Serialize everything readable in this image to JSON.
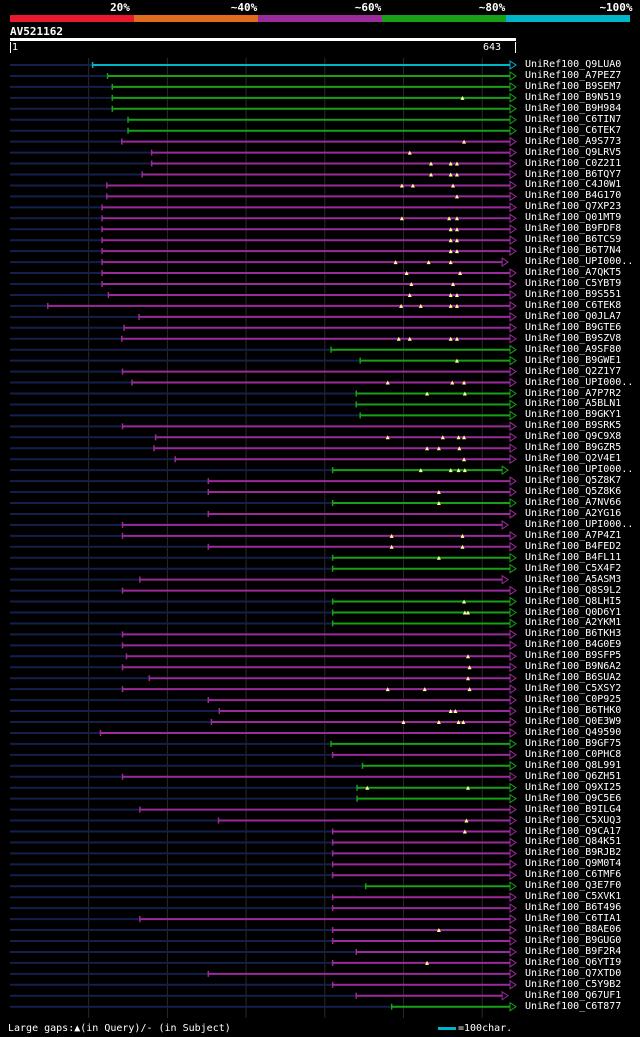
{
  "chart_data": {
    "type": "alignment-overview",
    "query": {
      "id": "AV521162",
      "start": 1,
      "length": 643
    },
    "identity_legend": [
      {
        "label": "20%",
        "color": "#e8192c"
      },
      {
        "label": "~40%",
        "color": "#e06b1c"
      },
      {
        "label": "~60%",
        "color": "#9b2a9b"
      },
      {
        "label": "~80%",
        "color": "#18a018"
      },
      {
        "label": "~100%",
        "color": "#00b5c8"
      }
    ],
    "footer": {
      "gaps_text": "Large gaps:▲(in Query)/- (in Subject)",
      "scale_text": "=100char."
    },
    "hits": [
      {
        "label": "UniRef100_Q9LUA0",
        "start": 105,
        "end": 643,
        "identity": 100,
        "gaps": []
      },
      {
        "label": "UniRef100_A7PEZ7",
        "start": 124,
        "end": 643,
        "identity": 80,
        "gaps": []
      },
      {
        "label": "UniRef100_B9SEM7",
        "start": 130,
        "end": 643,
        "identity": 80,
        "gaps": []
      },
      {
        "label": "UniRef100_B9N519",
        "start": 130,
        "end": 643,
        "identity": 80,
        "gaps": [
          575
        ]
      },
      {
        "label": "UniRef100_B9H984",
        "start": 130,
        "end": 643,
        "identity": 80,
        "gaps": []
      },
      {
        "label": "UniRef100_C6TIN7",
        "start": 150,
        "end": 643,
        "identity": 80,
        "gaps": []
      },
      {
        "label": "UniRef100_C6TEK7",
        "start": 150,
        "end": 643,
        "identity": 80,
        "gaps": []
      },
      {
        "label": "UniRef100_A9S773",
        "start": 142,
        "end": 643,
        "identity": 60,
        "gaps": [
          577
        ]
      },
      {
        "label": "UniRef100_Q9LRV5",
        "start": 180,
        "end": 643,
        "identity": 60,
        "gaps": [
          508
        ]
      },
      {
        "label": "UniRef100_C0Z2I1",
        "start": 180,
        "end": 643,
        "identity": 60,
        "gaps": [
          535,
          560,
          568
        ]
      },
      {
        "label": "UniRef100_B6TQY7",
        "start": 168,
        "end": 643,
        "identity": 60,
        "gaps": [
          535,
          560,
          568
        ]
      },
      {
        "label": "UniRef100_C4J0W1",
        "start": 123,
        "end": 643,
        "identity": 60,
        "gaps": [
          498,
          512,
          563
        ]
      },
      {
        "label": "UniRef100_B4G170",
        "start": 123,
        "end": 643,
        "identity": 60,
        "gaps": [
          568
        ]
      },
      {
        "label": "UniRef100_Q7XP23",
        "start": 117,
        "end": 643,
        "identity": 60,
        "gaps": []
      },
      {
        "label": "UniRef100_Q01MT9",
        "start": 117,
        "end": 643,
        "identity": 60,
        "gaps": [
          498,
          558,
          568
        ]
      },
      {
        "label": "UniRef100_B9FDF8",
        "start": 117,
        "end": 643,
        "identity": 60,
        "gaps": [
          560,
          568
        ]
      },
      {
        "label": "UniRef100_B6TCS9",
        "start": 117,
        "end": 643,
        "identity": 60,
        "gaps": [
          560,
          568
        ]
      },
      {
        "label": "UniRef100_B6T7N4",
        "start": 117,
        "end": 643,
        "identity": 60,
        "gaps": [
          560,
          568
        ]
      },
      {
        "label": "UniRef100_UPI000..",
        "start": 117,
        "end": 633,
        "identity": 60,
        "gaps": [
          490,
          532,
          560
        ]
      },
      {
        "label": "UniRef100_A7QKT5",
        "start": 117,
        "end": 643,
        "identity": 60,
        "gaps": [
          504,
          572
        ]
      },
      {
        "label": "UniRef100_C5YBT9",
        "start": 117,
        "end": 643,
        "identity": 60,
        "gaps": [
          510,
          563
        ]
      },
      {
        "label": "UniRef100_B9S551",
        "start": 125,
        "end": 643,
        "identity": 60,
        "gaps": [
          508,
          560,
          568
        ]
      },
      {
        "label": "UniRef100_C6TEK8",
        "start": 48,
        "end": 643,
        "identity": 60,
        "gaps": [
          497,
          522,
          560,
          568
        ]
      },
      {
        "label": "UniRef100_Q0JLA7",
        "start": 164,
        "end": 643,
        "identity": 60,
        "gaps": []
      },
      {
        "label": "UniRef100_B9GTE6",
        "start": 145,
        "end": 643,
        "identity": 60,
        "gaps": []
      },
      {
        "label": "UniRef100_B9SZV8",
        "start": 142,
        "end": 643,
        "identity": 60,
        "gaps": [
          494,
          508,
          560,
          568
        ]
      },
      {
        "label": "UniRef100_A9SF80",
        "start": 408,
        "end": 643,
        "identity": 80,
        "gaps": []
      },
      {
        "label": "UniRef100_B9GWE1",
        "start": 445,
        "end": 643,
        "identity": 80,
        "gaps": [
          568
        ]
      },
      {
        "label": "UniRef100_Q2Z1Y7",
        "start": 143,
        "end": 643,
        "identity": 60,
        "gaps": []
      },
      {
        "label": "UniRef100_UPI000..",
        "start": 155,
        "end": 643,
        "identity": 60,
        "gaps": [
          480,
          562,
          577
        ]
      },
      {
        "label": "UniRef100_A7P7R2",
        "start": 440,
        "end": 643,
        "identity": 80,
        "gaps": [
          530,
          578
        ]
      },
      {
        "label": "UniRef100_A5BLN1",
        "start": 440,
        "end": 643,
        "identity": 80,
        "gaps": []
      },
      {
        "label": "UniRef100_B9GKY1",
        "start": 445,
        "end": 643,
        "identity": 80,
        "gaps": []
      },
      {
        "label": "UniRef100_B9SRK5",
        "start": 143,
        "end": 643,
        "identity": 60,
        "gaps": []
      },
      {
        "label": "UniRef100_Q9C9X8",
        "start": 185,
        "end": 643,
        "identity": 60,
        "gaps": [
          480,
          550,
          570,
          577
        ]
      },
      {
        "label": "UniRef100_B9GZR5",
        "start": 183,
        "end": 643,
        "identity": 60,
        "gaps": [
          530,
          545,
          571
        ]
      },
      {
        "label": "UniRef100_Q2V4E1",
        "start": 210,
        "end": 643,
        "identity": 60,
        "gaps": [
          577
        ]
      },
      {
        "label": "UniRef100_UPI000..",
        "start": 410,
        "end": 633,
        "identity": 80,
        "gaps": [
          522,
          560,
          570,
          578
        ]
      },
      {
        "label": "UniRef100_Q5Z8K7",
        "start": 252,
        "end": 643,
        "identity": 60,
        "gaps": []
      },
      {
        "label": "UniRef100_Q5Z8K6",
        "start": 252,
        "end": 643,
        "identity": 60,
        "gaps": [
          545
        ]
      },
      {
        "label": "UniRef100_A7NV66",
        "start": 410,
        "end": 643,
        "identity": 80,
        "gaps": [
          545
        ]
      },
      {
        "label": "UniRef100_A2YG16",
        "start": 252,
        "end": 643,
        "identity": 60,
        "gaps": []
      },
      {
        "label": "UniRef100_UPI000..",
        "start": 143,
        "end": 633,
        "identity": 60,
        "gaps": []
      },
      {
        "label": "UniRef100_A7P4Z1",
        "start": 143,
        "end": 643,
        "identity": 60,
        "gaps": [
          485,
          575
        ]
      },
      {
        "label": "UniRef100_B4FED2",
        "start": 252,
        "end": 643,
        "identity": 60,
        "gaps": [
          485,
          575
        ]
      },
      {
        "label": "UniRef100_B4FL11",
        "start": 410,
        "end": 643,
        "identity": 80,
        "gaps": [
          545
        ]
      },
      {
        "label": "UniRef100_C5X4F2",
        "start": 410,
        "end": 643,
        "identity": 80,
        "gaps": []
      },
      {
        "label": "UniRef100_A5ASM3",
        "start": 165,
        "end": 633,
        "identity": 60,
        "gaps": []
      },
      {
        "label": "UniRef100_Q8S9L2",
        "start": 143,
        "end": 643,
        "identity": 60,
        "gaps": []
      },
      {
        "label": "UniRef100_Q8LHI5",
        "start": 410,
        "end": 643,
        "identity": 80,
        "gaps": [
          577
        ]
      },
      {
        "label": "UniRef100_Q0D6Y1",
        "start": 410,
        "end": 643,
        "identity": 80,
        "gaps": [
          578,
          582
        ]
      },
      {
        "label": "UniRef100_A2YKM1",
        "start": 410,
        "end": 643,
        "identity": 80,
        "gaps": []
      },
      {
        "label": "UniRef100_B6TKH3",
        "start": 143,
        "end": 643,
        "identity": 60,
        "gaps": []
      },
      {
        "label": "UniRef100_B4G0E9",
        "start": 143,
        "end": 643,
        "identity": 60,
        "gaps": []
      },
      {
        "label": "UniRef100_B9SFP5",
        "start": 148,
        "end": 643,
        "identity": 60,
        "gaps": [
          582
        ]
      },
      {
        "label": "UniRef100_B9N6A2",
        "start": 143,
        "end": 643,
        "identity": 60,
        "gaps": [
          584
        ]
      },
      {
        "label": "UniRef100_B6SUA2",
        "start": 177,
        "end": 643,
        "identity": 60,
        "gaps": [
          582
        ]
      },
      {
        "label": "UniRef100_C5XSY2",
        "start": 143,
        "end": 643,
        "identity": 60,
        "gaps": [
          480,
          527,
          584
        ]
      },
      {
        "label": "UniRef100_C0P925",
        "start": 252,
        "end": 643,
        "identity": 60,
        "gaps": []
      },
      {
        "label": "UniRef100_B6THK0",
        "start": 266,
        "end": 643,
        "identity": 60,
        "gaps": [
          560,
          566
        ]
      },
      {
        "label": "UniRef100_Q0E3W9",
        "start": 256,
        "end": 643,
        "identity": 60,
        "gaps": [
          500,
          545,
          570,
          576
        ]
      },
      {
        "label": "UniRef100_Q49590",
        "start": 115,
        "end": 643,
        "identity": 60,
        "gaps": []
      },
      {
        "label": "UniRef100_B9GF75",
        "start": 408,
        "end": 643,
        "identity": 80,
        "gaps": []
      },
      {
        "label": "UniRef100_C0PHC8",
        "start": 410,
        "end": 643,
        "identity": 60,
        "gaps": []
      },
      {
        "label": "UniRef100_Q8L991",
        "start": 448,
        "end": 643,
        "identity": 80,
        "gaps": []
      },
      {
        "label": "UniRef100_Q6ZH51",
        "start": 143,
        "end": 643,
        "identity": 60,
        "gaps": []
      },
      {
        "label": "UniRef100_Q9XI25",
        "start": 441,
        "end": 643,
        "identity": 80,
        "gaps": [
          454,
          582
        ]
      },
      {
        "label": "UniRef100_Q9C5E6",
        "start": 441,
        "end": 643,
        "identity": 80,
        "gaps": []
      },
      {
        "label": "UniRef100_B9ILG4",
        "start": 165,
        "end": 643,
        "identity": 60,
        "gaps": []
      },
      {
        "label": "UniRef100_C5XUQ3",
        "start": 265,
        "end": 643,
        "identity": 60,
        "gaps": [
          580
        ]
      },
      {
        "label": "UniRef100_Q9CA17",
        "start": 410,
        "end": 643,
        "identity": 60,
        "gaps": [
          578
        ]
      },
      {
        "label": "UniRef100_Q84K51",
        "start": 410,
        "end": 643,
        "identity": 60,
        "gaps": []
      },
      {
        "label": "UniRef100_B9RJB2",
        "start": 410,
        "end": 643,
        "identity": 60,
        "gaps": []
      },
      {
        "label": "UniRef100_Q9M0T4",
        "start": 410,
        "end": 643,
        "identity": 60,
        "gaps": []
      },
      {
        "label": "UniRef100_C6TMF6",
        "start": 410,
        "end": 643,
        "identity": 60,
        "gaps": []
      },
      {
        "label": "UniRef100_Q3E7F0",
        "start": 452,
        "end": 643,
        "identity": 80,
        "gaps": []
      },
      {
        "label": "UniRef100_C5XVK1",
        "start": 410,
        "end": 643,
        "identity": 60,
        "gaps": []
      },
      {
        "label": "UniRef100_B6T496",
        "start": 410,
        "end": 643,
        "identity": 60,
        "gaps": []
      },
      {
        "label": "UniRef100_C6TIA1",
        "start": 165,
        "end": 643,
        "identity": 60,
        "gaps": []
      },
      {
        "label": "UniRef100_B8AE06",
        "start": 410,
        "end": 643,
        "identity": 60,
        "gaps": [
          545
        ]
      },
      {
        "label": "UniRef100_B9GUG0",
        "start": 410,
        "end": 643,
        "identity": 60,
        "gaps": []
      },
      {
        "label": "UniRef100_B9F2R4",
        "start": 440,
        "end": 643,
        "identity": 60,
        "gaps": []
      },
      {
        "label": "UniRef100_Q6YTI9",
        "start": 410,
        "end": 643,
        "identity": 60,
        "gaps": [
          530
        ]
      },
      {
        "label": "UniRef100_Q7XTD0",
        "start": 252,
        "end": 643,
        "identity": 60,
        "gaps": []
      },
      {
        "label": "UniRef100_C5Y9B2",
        "start": 410,
        "end": 643,
        "identity": 60,
        "gaps": []
      },
      {
        "label": "UniRef100_Q67UF1",
        "start": 440,
        "end": 633,
        "identity": 60,
        "gaps": []
      },
      {
        "label": "UniRef100_C6T877",
        "start": 485,
        "end": 643,
        "identity": 80,
        "gaps": []
      }
    ]
  }
}
